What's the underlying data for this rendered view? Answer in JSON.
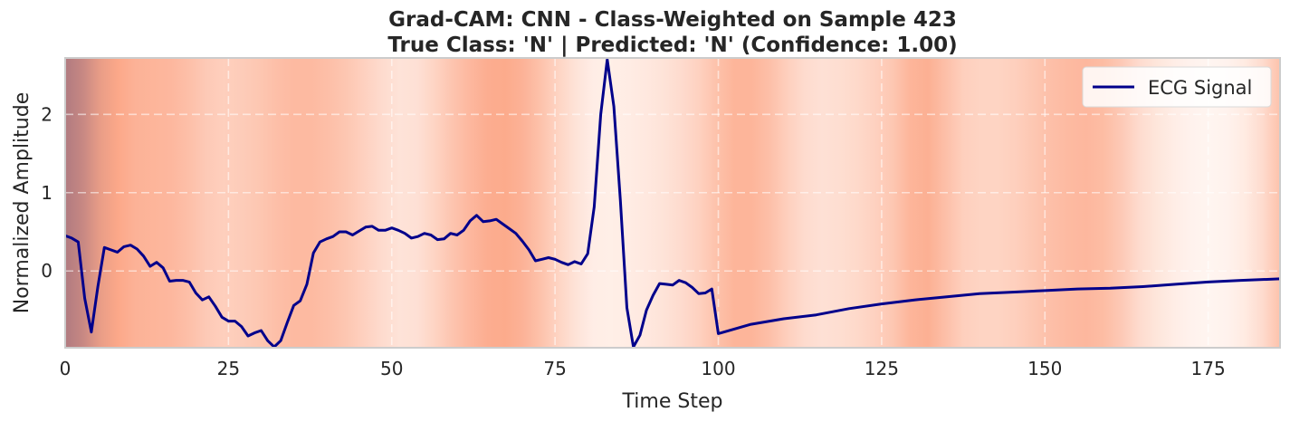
{
  "chart_data": {
    "type": "line",
    "title_lines": [
      "Grad-CAM: CNN - Class-Weighted on Sample 423",
      "True Class: 'N' | Predicted: 'N' (Confidence: 1.00)"
    ],
    "xlabel": "Time Step",
    "ylabel": "Normalized Amplitude",
    "xlim": [
      0,
      186
    ],
    "ylim": [
      -0.98,
      2.72
    ],
    "xticks": [
      0,
      25,
      50,
      75,
      100,
      125,
      150,
      175
    ],
    "yticks": [
      0,
      1,
      2
    ],
    "grid": true,
    "legend": {
      "position": "top-right",
      "entries": [
        "ECG Signal"
      ]
    },
    "colors": {
      "line": "#00008b",
      "heat_low": "#fff5f0",
      "heat_high": "#fca889",
      "heat_peak": "#b07a80"
    },
    "series": [
      {
        "name": "ECG Signal",
        "x": [
          0,
          1,
          2,
          3,
          4,
          5,
          6,
          7,
          8,
          9,
          10,
          11,
          12,
          13,
          14,
          15,
          16,
          17,
          18,
          19,
          20,
          21,
          22,
          23,
          24,
          25,
          26,
          27,
          28,
          29,
          30,
          31,
          32,
          33,
          34,
          35,
          36,
          37,
          38,
          39,
          40,
          41,
          42,
          43,
          44,
          45,
          46,
          47,
          48,
          49,
          50,
          51,
          52,
          53,
          54,
          55,
          56,
          57,
          58,
          59,
          60,
          61,
          62,
          63,
          64,
          65,
          66,
          67,
          68,
          69,
          70,
          71,
          72,
          73,
          74,
          75,
          76,
          77,
          78,
          79,
          80,
          81,
          82,
          83,
          84,
          85,
          86,
          87,
          88,
          89,
          90,
          91,
          92,
          93,
          94,
          95,
          96,
          97,
          98,
          99,
          100,
          105,
          110,
          115,
          120,
          125,
          130,
          135,
          140,
          145,
          150,
          155,
          160,
          165,
          170,
          175,
          180,
          186
        ],
        "values": [
          0.45,
          0.42,
          0.37,
          -0.35,
          -0.78,
          -0.2,
          0.3,
          0.27,
          0.24,
          0.31,
          0.33,
          0.28,
          0.19,
          0.06,
          0.11,
          0.04,
          -0.13,
          -0.12,
          -0.12,
          -0.14,
          -0.28,
          -0.37,
          -0.33,
          -0.45,
          -0.59,
          -0.64,
          -0.64,
          -0.71,
          -0.83,
          -0.79,
          -0.76,
          -0.89,
          -0.97,
          -0.89,
          -0.66,
          -0.44,
          -0.38,
          -0.17,
          0.23,
          0.37,
          0.41,
          0.44,
          0.5,
          0.5,
          0.46,
          0.51,
          0.56,
          0.57,
          0.52,
          0.52,
          0.55,
          0.52,
          0.48,
          0.42,
          0.44,
          0.48,
          0.46,
          0.4,
          0.41,
          0.48,
          0.46,
          0.52,
          0.64,
          0.71,
          0.63,
          0.64,
          0.66,
          0.6,
          0.54,
          0.48,
          0.38,
          0.27,
          0.13,
          0.15,
          0.17,
          0.15,
          0.11,
          0.08,
          0.12,
          0.09,
          0.22,
          0.82,
          2.0,
          2.7,
          2.1,
          0.9,
          -0.47,
          -0.97,
          -0.82,
          -0.5,
          -0.31,
          -0.16,
          -0.17,
          -0.18,
          -0.12,
          -0.15,
          -0.21,
          -0.29,
          -0.28,
          -0.23,
          -0.8,
          -0.68,
          -0.61,
          -0.56,
          -0.48,
          -0.42,
          -0.37,
          -0.33,
          -0.29,
          -0.27,
          -0.25,
          -0.23,
          -0.22,
          -0.2,
          -0.17,
          -0.14,
          -0.12,
          -0.1
        ]
      }
    ],
    "heatmap_intensity": [
      1.0,
      0.88,
      0.7,
      0.6,
      0.52,
      0.5,
      0.48,
      0.42,
      0.34,
      0.3,
      0.32,
      0.36,
      0.42,
      0.46,
      0.46,
      0.42,
      0.36,
      0.28,
      0.2,
      0.14,
      0.16,
      0.26,
      0.38,
      0.48,
      0.56,
      0.58,
      0.52,
      0.4,
      0.26,
      0.14,
      0.06,
      0.05,
      0.07,
      0.1,
      0.14,
      0.2,
      0.28,
      0.4,
      0.5,
      0.5,
      0.42,
      0.3,
      0.2,
      0.16,
      0.18,
      0.22,
      0.28,
      0.36,
      0.5,
      0.54,
      0.42,
      0.3,
      0.26,
      0.26,
      0.3,
      0.36,
      0.42,
      0.46,
      0.48,
      0.44,
      0.34,
      0.2,
      0.12,
      0.06,
      0.02,
      0.0,
      0.02,
      0.08,
      0.2,
      0.4
    ]
  }
}
